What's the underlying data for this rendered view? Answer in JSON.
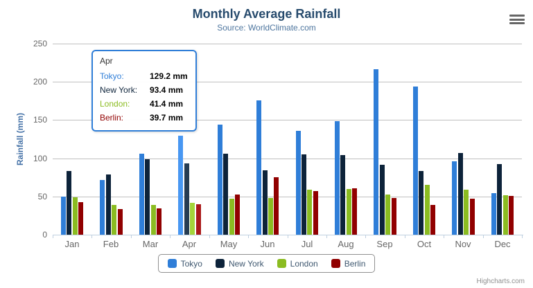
{
  "title": "Monthly Average Rainfall",
  "subtitle": "Source: WorldClimate.com",
  "credits": "Highcharts.com",
  "export_menu": {
    "icon": "hamburger-icon"
  },
  "tooltip": {
    "header": "Apr",
    "border_color": "#2f7ed8",
    "rows": [
      {
        "name": "Tokyo:",
        "value": "129.2 mm",
        "color": "#2f7ed8"
      },
      {
        "name": "New York:",
        "value": "93.4 mm",
        "color": "#0d233a"
      },
      {
        "name": "London:",
        "value": "41.4 mm",
        "color": "#8bbc21"
      },
      {
        "name": "Berlin:",
        "value": "39.7 mm",
        "color": "#910000"
      }
    ]
  },
  "chart_data": {
    "type": "bar",
    "title": "Monthly Average Rainfall",
    "subtitle": "Source: WorldClimate.com",
    "xlabel": "",
    "ylabel": "Rainfall (mm)",
    "ylim": [
      0,
      250
    ],
    "y_ticks": [
      0,
      50,
      100,
      150,
      200,
      250
    ],
    "grid": true,
    "legend_position": "bottom",
    "hovered_category": "Apr",
    "categories": [
      "Jan",
      "Feb",
      "Mar",
      "Apr",
      "May",
      "Jun",
      "Jul",
      "Aug",
      "Sep",
      "Oct",
      "Nov",
      "Dec"
    ],
    "series": [
      {
        "name": "Tokyo",
        "color": "#2f7ed8",
        "hover_color": "#4897f2",
        "values": [
          49.9,
          71.5,
          106.4,
          129.2,
          144.0,
          176.0,
          135.6,
          148.5,
          216.4,
          194.1,
          95.6,
          54.4
        ]
      },
      {
        "name": "New York",
        "color": "#0d233a",
        "hover_color": "#263c53",
        "values": [
          83.6,
          78.8,
          98.5,
          93.4,
          106.0,
          84.5,
          105.0,
          104.3,
          91.2,
          83.5,
          106.6,
          92.3
        ]
      },
      {
        "name": "London",
        "color": "#8bbc21",
        "hover_color": "#a4d53a",
        "values": [
          48.9,
          38.8,
          39.3,
          41.4,
          47.0,
          48.3,
          59.0,
          59.6,
          52.4,
          65.2,
          59.3,
          51.2
        ]
      },
      {
        "name": "Berlin",
        "color": "#910000",
        "hover_color": "#aa1919",
        "values": [
          42.4,
          33.2,
          34.5,
          39.7,
          52.6,
          75.5,
          57.4,
          60.4,
          47.6,
          39.1,
          46.8,
          51.1
        ]
      }
    ]
  }
}
